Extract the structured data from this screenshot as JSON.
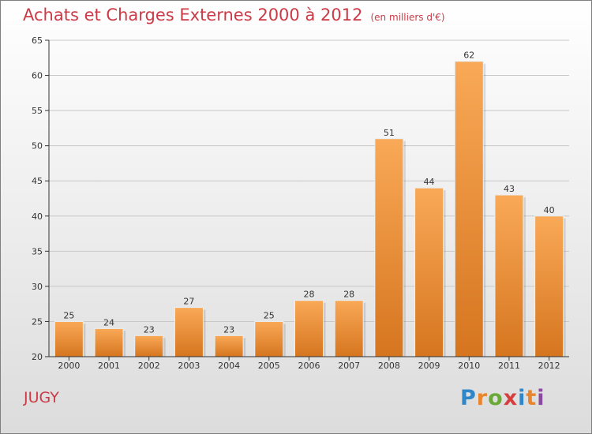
{
  "header": {
    "title": "Achats et Charges Externes 2000 à 2012",
    "subtitle": "(en milliers d'€)"
  },
  "footer": {
    "commune": "JUGY",
    "brand": "Proxiti"
  },
  "colors": {
    "title": "#cc3a47",
    "bar_light": "#f9a957",
    "bar_dark": "#d6751f",
    "axis": "#333333",
    "grid": "#c8c8c8"
  },
  "chart_data": {
    "type": "bar",
    "categories": [
      "2000",
      "2001",
      "2002",
      "2003",
      "2004",
      "2005",
      "2006",
      "2007",
      "2008",
      "2009",
      "2010",
      "2011",
      "2012"
    ],
    "values": [
      25,
      24,
      23,
      27,
      23,
      25,
      28,
      28,
      51,
      44,
      62,
      43,
      40
    ],
    "ylim": [
      20,
      65
    ],
    "yticks": [
      20,
      25,
      30,
      35,
      40,
      45,
      50,
      55,
      60,
      65
    ],
    "grid": true,
    "data_labels": true,
    "xlabel": "",
    "ylabel": ""
  }
}
